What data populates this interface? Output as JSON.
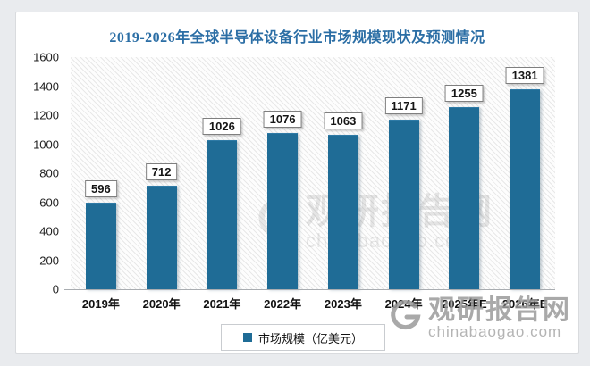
{
  "title": "2019-2026年全球半导体设备行业市场规模现状及预测情况",
  "chart_data": {
    "type": "bar",
    "categories": [
      "2019年",
      "2020年",
      "2021年",
      "2022年",
      "2023年",
      "2024年",
      "2025年E",
      "2026年E"
    ],
    "values": [
      596,
      712,
      1026,
      1076,
      1063,
      1171,
      1255,
      1381
    ],
    "series_name": "市场规模（亿美元）",
    "title": "2019-2026年全球半导体设备行业市场规模现状及预测情况",
    "xlabel": "",
    "ylabel": "",
    "ylim": [
      0,
      1600
    ],
    "yticks": [
      0,
      200,
      400,
      600,
      800,
      1000,
      1200,
      1400,
      1600
    ],
    "grid": false,
    "legend_position": "bottom",
    "data_labels": true
  },
  "legend": {
    "label": "市场规模（亿美元）"
  },
  "watermark": {
    "name": "观研报告网",
    "domain": "chinabaogao.com"
  },
  "colors": {
    "bar": "#1f6c96",
    "title": "#2b6ea5",
    "plot_hatch": "#e8e8e8",
    "axis_line": "#a9adb1",
    "watermark_gray": "#9b9b9b"
  }
}
